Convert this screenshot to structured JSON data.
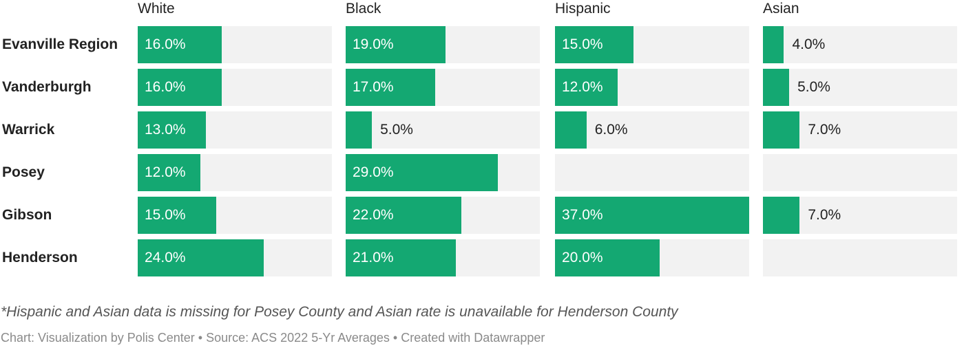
{
  "chart_data": {
    "type": "bar",
    "columns": [
      "White",
      "Black",
      "Hispanic",
      "Asian"
    ],
    "categories": [
      "Evanville Region",
      "Vanderburgh",
      "Warrick",
      "Posey",
      "Gibson",
      "Henderson"
    ],
    "series": [
      {
        "name": "White",
        "values": [
          16.0,
          16.0,
          13.0,
          12.0,
          15.0,
          24.0
        ]
      },
      {
        "name": "Black",
        "values": [
          19.0,
          17.0,
          5.0,
          29.0,
          22.0,
          21.0
        ]
      },
      {
        "name": "Hispanic",
        "values": [
          15.0,
          12.0,
          6.0,
          null,
          37.0,
          20.0
        ]
      },
      {
        "name": "Asian",
        "values": [
          4.0,
          5.0,
          7.0,
          null,
          7.0,
          null
        ]
      }
    ],
    "xlim": [
      0,
      37
    ],
    "value_format": "0.0%",
    "bar_color": "#14a872",
    "track_color": "#f2f2f2"
  },
  "footnote": "*Hispanic and Asian data is missing for Posey County and Asian rate is unavailable for Henderson County",
  "credit": "Chart: Visualization by Polis Center • Source: ACS 2022 5-Yr Averages • Created with Datawrapper"
}
